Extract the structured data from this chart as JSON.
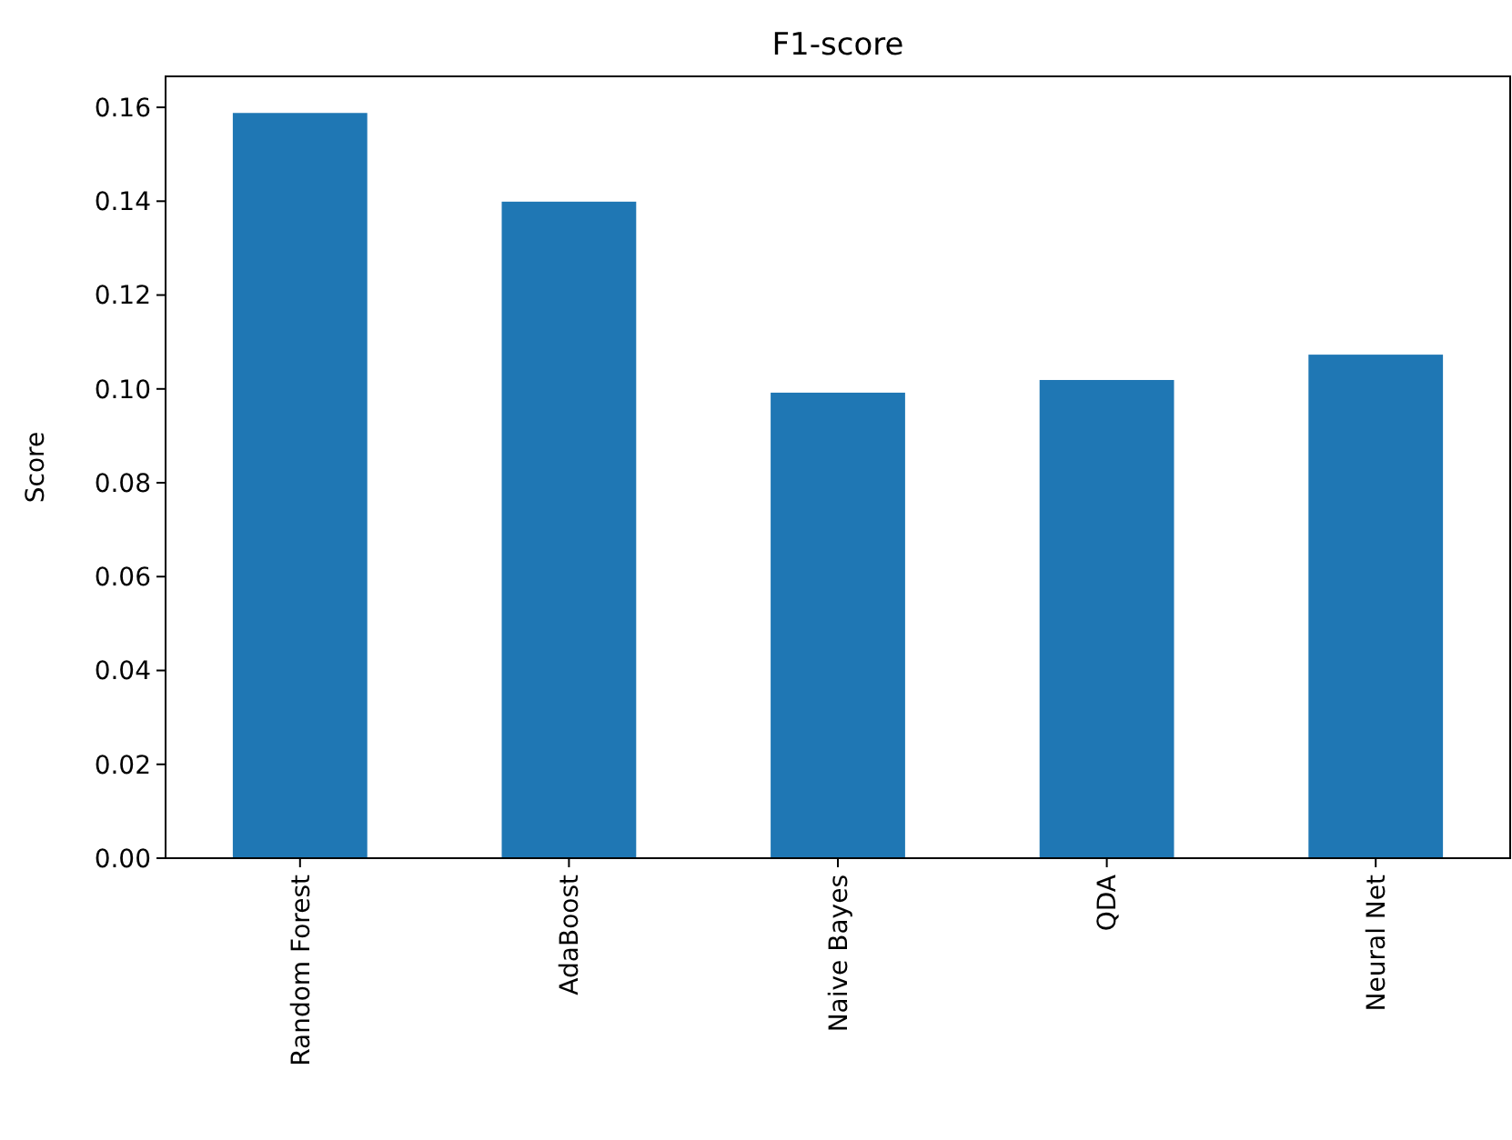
{
  "chart_data": {
    "type": "bar",
    "title": "F1-score",
    "ylabel": "Score",
    "categories": [
      "Random Forest",
      "AdaBoost",
      "Naive Bayes",
      "QDA",
      "Neural Net"
    ],
    "values": [
      0.1588,
      0.1399,
      0.0992,
      0.1019,
      0.1073
    ],
    "color": "#1f77b4",
    "ylim": [
      0,
      0.1666
    ],
    "yticks": [
      {
        "value": 0,
        "label": "0.00"
      },
      {
        "value": 0.02,
        "label": "0.02"
      },
      {
        "value": 0.04,
        "label": "0.04"
      },
      {
        "value": 0.06,
        "label": "0.06"
      },
      {
        "value": 0.08,
        "label": "0.08"
      },
      {
        "value": 0.1,
        "label": "0.10"
      },
      {
        "value": 0.12,
        "label": "0.12"
      },
      {
        "value": 0.14,
        "label": "0.14"
      },
      {
        "value": 0.16,
        "label": "0.16"
      }
    ],
    "grid": false
  }
}
